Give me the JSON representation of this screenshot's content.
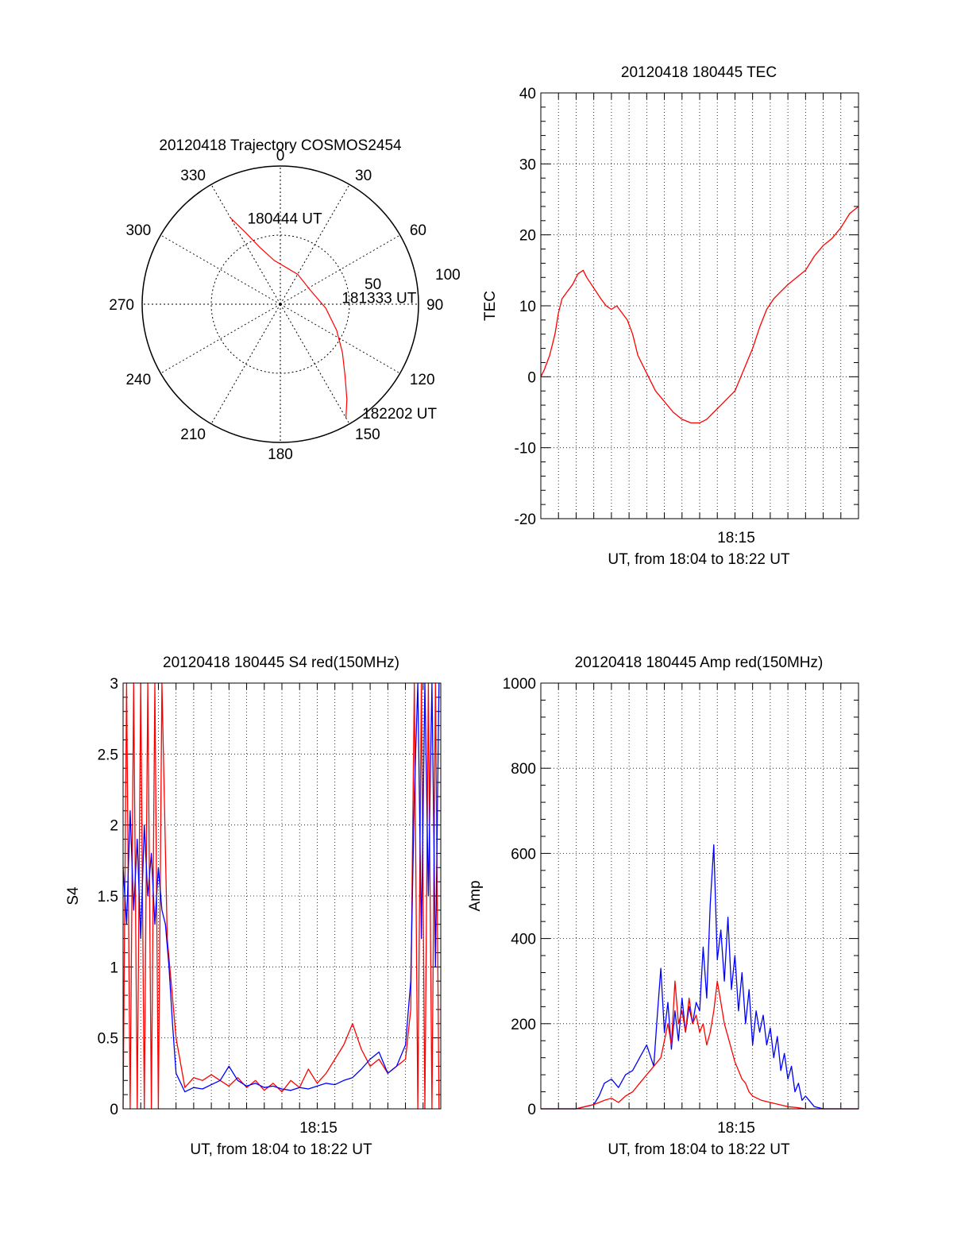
{
  "colors": {
    "red": "#ff0000",
    "blue": "#0000ff",
    "axis": "#000000",
    "grid": "#000000"
  },
  "chart_data": [
    {
      "type": "polar",
      "title": "20120418 Trajectory COSMOS2454",
      "angle_labels": [
        "0",
        "30",
        "60",
        "90",
        "120",
        "150",
        "180",
        "210",
        "240",
        "270",
        "300",
        "330"
      ],
      "radial_labels": [
        "50",
        "100"
      ],
      "series": [
        {
          "color": "red",
          "points": [
            [
              330,
              72
            ],
            [
              334,
              58
            ],
            [
              340,
              44
            ],
            [
              352,
              32
            ],
            [
              30,
              25
            ],
            [
              65,
              24
            ],
            [
              95,
              33
            ],
            [
              115,
              45
            ],
            [
              128,
              57
            ],
            [
              138,
              70
            ],
            [
              145,
              84
            ],
            [
              150,
              95
            ]
          ]
        }
      ],
      "annotations": [
        {
          "text": "180444 UT",
          "az": 341,
          "r": 66
        },
        {
          "text": "181333 UT",
          "az": 84,
          "r": 47
        },
        {
          "text": "182202 UT",
          "az": 142,
          "r": 100
        }
      ]
    },
    {
      "type": "line",
      "title": "20120418 180445 TEC",
      "xlabel": "UT, from 18:04 to 18:22 UT",
      "ylabel": "TEC",
      "x_tick_label": "18:15",
      "ylim": [
        -20,
        40
      ],
      "yticks": [
        "-20",
        "-10",
        "0",
        "10",
        "20",
        "30",
        "40"
      ],
      "grid": true,
      "series": [
        {
          "color": "red",
          "x": [
            0.0,
            0.2,
            0.5,
            0.8,
            1.0,
            1.2,
            1.5,
            1.8,
            2.1,
            2.4,
            2.6,
            3.0,
            3.4,
            3.7,
            4.0,
            4.3,
            4.6,
            4.9,
            5.2,
            5.5,
            6.0,
            6.5,
            7.0,
            7.5,
            8.0,
            8.5,
            9.0,
            9.4,
            9.8,
            10.2,
            10.6,
            11.0,
            11.5,
            12.0,
            12.4,
            12.8,
            13.2,
            13.6,
            14.0,
            14.5,
            15.0,
            15.5,
            16.0,
            16.5,
            17.0,
            17.5,
            18.0
          ],
          "y": [
            0,
            1,
            3,
            6,
            9,
            11,
            12,
            13,
            14.5,
            15,
            14,
            12.5,
            11,
            10,
            9.5,
            10,
            9,
            8,
            6,
            3,
            0.5,
            -2,
            -3.5,
            -5,
            -6,
            -6.5,
            -6.5,
            -6,
            -5,
            -4,
            -3,
            -2,
            1,
            4,
            7,
            9.5,
            11,
            12,
            13,
            14,
            15,
            17,
            18.5,
            19.5,
            21,
            23,
            24
          ]
        }
      ]
    },
    {
      "type": "line",
      "title": "20120418 180445 S4 red(150MHz)",
      "xlabel": "UT, from 18:04 to 18:22 UT",
      "ylabel": "S4",
      "x_tick_label": "18:15",
      "ylim": [
        0,
        3
      ],
      "yticks": [
        "0",
        "0.5",
        "1",
        "1.5",
        "2",
        "2.5",
        "3"
      ],
      "grid": true,
      "series": [
        {
          "color": "red",
          "x": [
            0.0,
            0.2,
            0.4,
            0.6,
            0.8,
            1.0,
            1.2,
            1.4,
            1.6,
            1.8,
            2.0,
            2.2,
            2.5,
            3.0,
            3.5,
            4.0,
            4.5,
            5.0,
            5.5,
            6.0,
            6.5,
            7.0,
            7.5,
            8.0,
            8.5,
            9.0,
            9.5,
            10.0,
            10.5,
            11.0,
            11.5,
            12.0,
            12.5,
            13.0,
            13.5,
            14.0,
            14.5,
            15.0,
            15.5,
            16.0,
            16.3,
            16.5,
            16.7,
            16.9,
            17.1,
            17.3,
            17.5,
            17.7,
            17.9
          ],
          "y": [
            0,
            3,
            0,
            3,
            0,
            3,
            0,
            3,
            0,
            3,
            0,
            3,
            1.2,
            0.5,
            0.15,
            0.22,
            0.2,
            0.24,
            0.2,
            0.16,
            0.22,
            0.15,
            0.2,
            0.13,
            0.18,
            0.12,
            0.2,
            0.15,
            0.28,
            0.18,
            0.25,
            0.35,
            0.45,
            0.6,
            0.42,
            0.3,
            0.35,
            0.25,
            0.3,
            0.35,
            0.7,
            3,
            0,
            3,
            0,
            3,
            0,
            3,
            0
          ]
        },
        {
          "color": "blue",
          "x": [
            0.0,
            0.2,
            0.4,
            0.6,
            0.8,
            1.0,
            1.2,
            1.4,
            1.6,
            1.8,
            2.0,
            2.2,
            2.4,
            2.6,
            2.8,
            3.0,
            3.5,
            4.0,
            4.5,
            5.0,
            5.5,
            6.0,
            6.5,
            7.0,
            7.5,
            8.0,
            8.5,
            9.0,
            9.5,
            10.0,
            10.5,
            11.0,
            11.5,
            12.0,
            12.5,
            13.0,
            13.5,
            14.0,
            14.5,
            15.0,
            15.5,
            16.0,
            16.3,
            16.5,
            16.7,
            16.9,
            17.1,
            17.3,
            17.5,
            17.7,
            17.9
          ],
          "y": [
            1.7,
            1.3,
            2.1,
            1.4,
            1.9,
            1.2,
            2.0,
            1.5,
            1.8,
            1.3,
            1.7,
            1.4,
            1.3,
            1.0,
            0.6,
            0.25,
            0.12,
            0.15,
            0.14,
            0.17,
            0.2,
            0.3,
            0.2,
            0.16,
            0.18,
            0.15,
            0.16,
            0.14,
            0.13,
            0.15,
            0.14,
            0.16,
            0.18,
            0.17,
            0.2,
            0.22,
            0.28,
            0.35,
            0.4,
            0.25,
            0.3,
            0.45,
            0.9,
            2.2,
            3,
            1.2,
            3,
            1.5,
            3,
            1.0,
            3
          ]
        }
      ]
    },
    {
      "type": "line",
      "title": "20120418 180445 Amp red(150MHz)",
      "xlabel": "UT, from 18:04 to 18:22 UT",
      "ylabel": "Amp",
      "x_tick_label": "18:15",
      "ylim": [
        0,
        1000
      ],
      "yticks": [
        "0",
        "200",
        "400",
        "600",
        "800",
        "1000"
      ],
      "grid": true,
      "series": [
        {
          "color": "blue",
          "x": [
            0.0,
            1.0,
            2.0,
            2.5,
            3.0,
            3.3,
            3.6,
            4.0,
            4.4,
            4.8,
            5.2,
            5.6,
            6.0,
            6.4,
            6.6,
            6.8,
            7.0,
            7.2,
            7.4,
            7.6,
            7.8,
            8.0,
            8.2,
            8.4,
            8.6,
            8.8,
            9.0,
            9.2,
            9.4,
            9.6,
            9.8,
            10.0,
            10.2,
            10.4,
            10.6,
            10.8,
            11.0,
            11.2,
            11.4,
            11.6,
            11.8,
            12.0,
            12.2,
            12.4,
            12.6,
            12.8,
            13.0,
            13.2,
            13.4,
            13.6,
            13.8,
            14.0,
            14.2,
            14.4,
            14.6,
            14.8,
            15.0,
            15.5,
            16.0,
            17.0,
            18.0
          ],
          "y": [
            0,
            0,
            0,
            5,
            10,
            30,
            60,
            70,
            50,
            80,
            90,
            120,
            150,
            100,
            220,
            330,
            180,
            250,
            140,
            230,
            160,
            260,
            180,
            240,
            200,
            250,
            230,
            380,
            260,
            480,
            620,
            350,
            420,
            300,
            450,
            280,
            360,
            230,
            320,
            200,
            280,
            150,
            230,
            180,
            220,
            150,
            190,
            120,
            170,
            90,
            130,
            70,
            100,
            40,
            60,
            20,
            30,
            5,
            0,
            0,
            0
          ]
        },
        {
          "color": "red",
          "x": [
            0.0,
            2.0,
            2.5,
            3.0,
            3.3,
            3.6,
            4.0,
            4.4,
            4.8,
            5.2,
            5.6,
            6.0,
            6.4,
            6.8,
            7.0,
            7.2,
            7.4,
            7.6,
            7.8,
            8.0,
            8.2,
            8.4,
            8.6,
            8.8,
            9.0,
            9.2,
            9.4,
            9.6,
            9.8,
            10.0,
            10.2,
            10.4,
            10.6,
            10.8,
            11.0,
            11.2,
            11.4,
            11.6,
            11.8,
            12.0,
            12.5,
            13.0,
            13.5,
            14.0,
            14.5,
            15.0,
            16.0,
            18.0
          ],
          "y": [
            0,
            0,
            5,
            10,
            15,
            20,
            25,
            15,
            30,
            40,
            60,
            80,
            100,
            120,
            160,
            200,
            150,
            300,
            200,
            230,
            180,
            260,
            200,
            220,
            180,
            200,
            150,
            180,
            230,
            300,
            250,
            200,
            170,
            140,
            110,
            90,
            70,
            60,
            40,
            30,
            20,
            15,
            10,
            5,
            3,
            0,
            0,
            0
          ]
        }
      ]
    }
  ]
}
